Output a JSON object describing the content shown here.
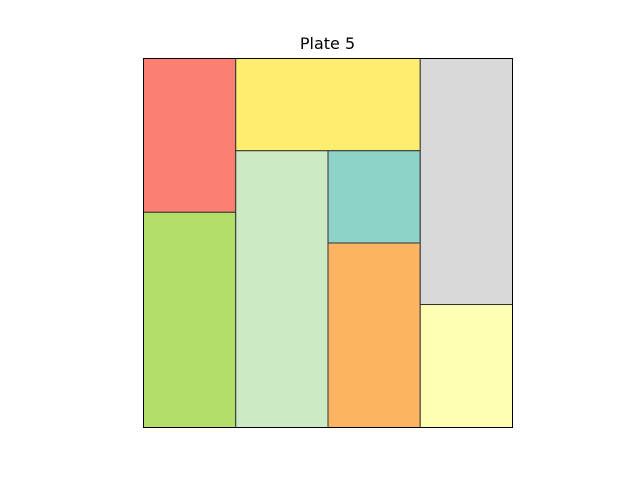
{
  "title": "Plate 5",
  "grid": {
    "cols": 4,
    "rows": 4
  },
  "tiles": [
    {
      "id": "salmon",
      "color": "#fb8072",
      "col": 0,
      "row": 0,
      "w": 1,
      "h": 1.667
    },
    {
      "id": "lime",
      "color": "#b3de69",
      "col": 0,
      "row": 1.667,
      "w": 1,
      "h": 2.333
    },
    {
      "id": "yellow",
      "color": "#ffed6f",
      "col": 1,
      "row": 0,
      "w": 2,
      "h": 1
    },
    {
      "id": "light-green",
      "color": "#ccebc5",
      "col": 1,
      "row": 1,
      "w": 1,
      "h": 3
    },
    {
      "id": "teal",
      "color": "#8dd3c7",
      "col": 2,
      "row": 1,
      "w": 1,
      "h": 1
    },
    {
      "id": "orange",
      "color": "#fdb462",
      "col": 2,
      "row": 2,
      "w": 1,
      "h": 2
    },
    {
      "id": "gray",
      "color": "#d9d9d9",
      "col": 3,
      "row": 0,
      "w": 1,
      "h": 2.667
    },
    {
      "id": "pale-yellow",
      "color": "#ffffb3",
      "col": 3,
      "row": 2.667,
      "w": 1,
      "h": 1.333
    }
  ]
}
